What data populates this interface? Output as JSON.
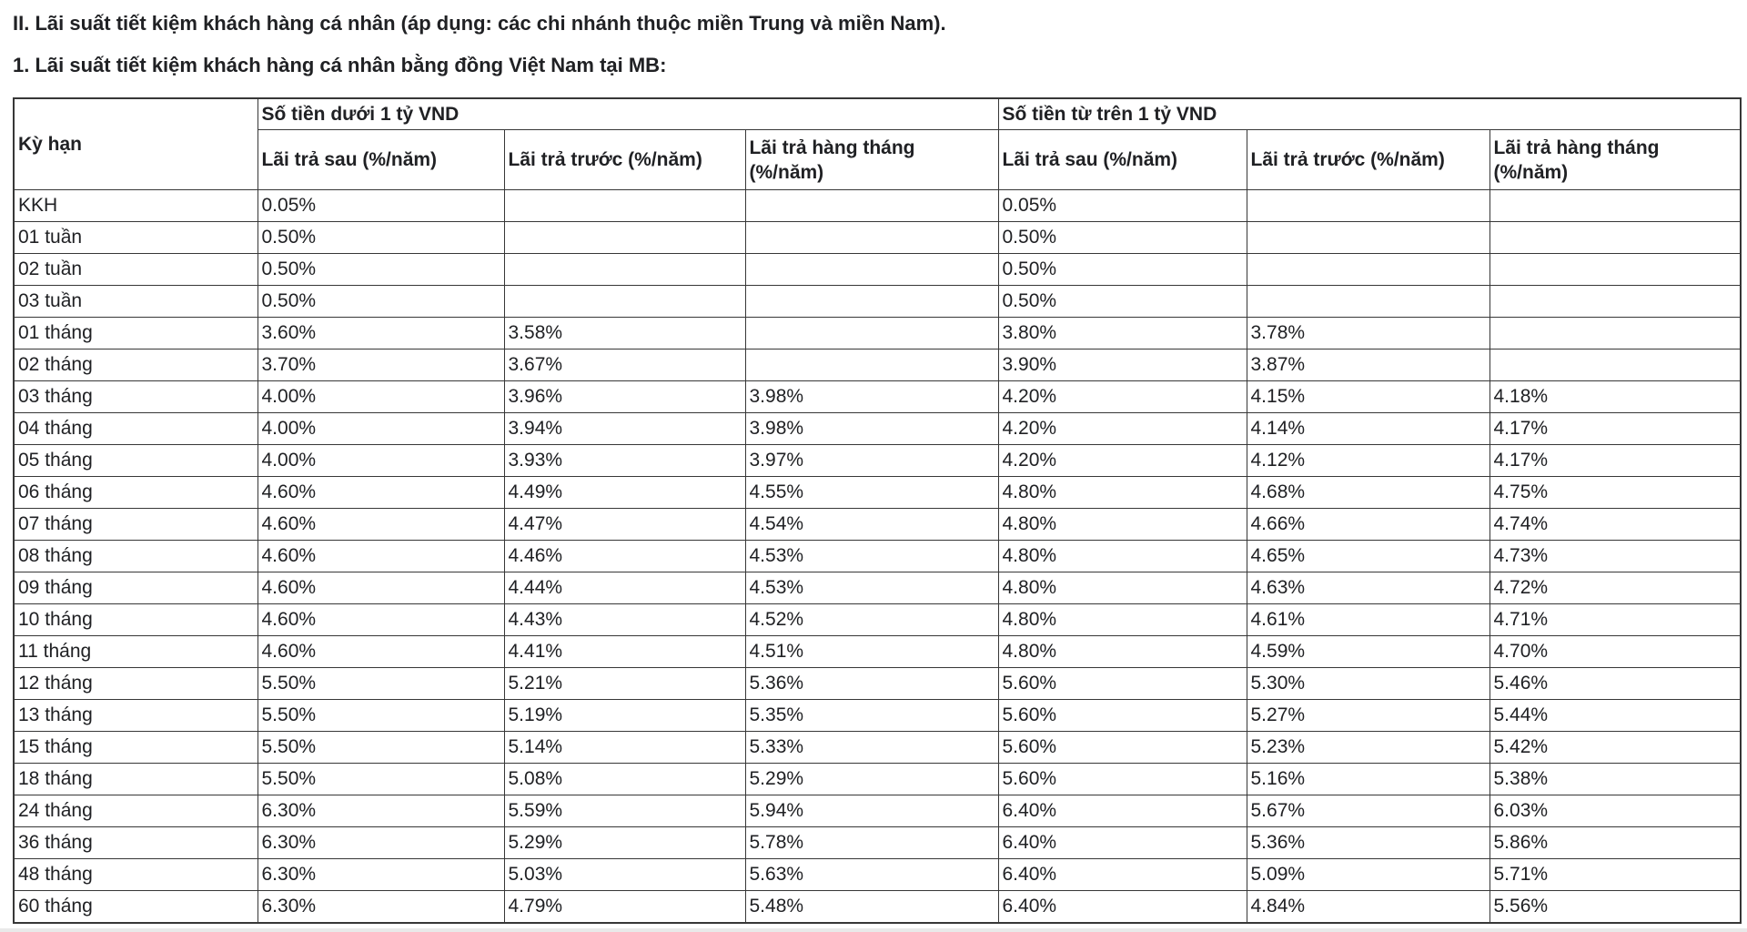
{
  "page": {
    "section_title": "II. Lãi suất tiết kiệm khách hàng cá nhân (áp dụng: các chi nhánh thuộc miền Trung và miền Nam).",
    "table_title": "1. Lãi suất tiết kiệm khách hàng cá nhân bằng đồng Việt Nam tại MB:"
  },
  "table": {
    "term_header": "Kỳ hạn",
    "group_headers": [
      "Số tiền dưới 1 tỷ VND",
      "Số tiền từ trên 1 tỷ VND"
    ],
    "sub_headers": [
      "Lãi trả sau (%/năm)",
      "Lãi trả trước (%/năm)",
      "Lãi trả hàng tháng (%/năm)"
    ],
    "rows": [
      {
        "term": "KKH",
        "values": [
          "0.05%",
          "",
          "",
          "0.05%",
          "",
          ""
        ]
      },
      {
        "term": "01 tuần",
        "values": [
          "0.50%",
          "",
          "",
          "0.50%",
          "",
          ""
        ]
      },
      {
        "term": "02 tuần",
        "values": [
          "0.50%",
          "",
          "",
          "0.50%",
          "",
          ""
        ]
      },
      {
        "term": "03 tuần",
        "values": [
          "0.50%",
          "",
          "",
          "0.50%",
          "",
          ""
        ]
      },
      {
        "term": "01 tháng",
        "values": [
          "3.60%",
          "3.58%",
          "",
          "3.80%",
          "3.78%",
          ""
        ]
      },
      {
        "term": "02 tháng",
        "values": [
          "3.70%",
          "3.67%",
          "",
          "3.90%",
          "3.87%",
          ""
        ]
      },
      {
        "term": "03 tháng",
        "values": [
          "4.00%",
          "3.96%",
          "3.98%",
          "4.20%",
          "4.15%",
          "4.18%"
        ]
      },
      {
        "term": "04 tháng",
        "values": [
          "4.00%",
          "3.94%",
          "3.98%",
          "4.20%",
          "4.14%",
          "4.17%"
        ]
      },
      {
        "term": "05 tháng",
        "values": [
          "4.00%",
          "3.93%",
          "3.97%",
          "4.20%",
          "4.12%",
          "4.17%"
        ]
      },
      {
        "term": "06 tháng",
        "values": [
          "4.60%",
          "4.49%",
          "4.55%",
          "4.80%",
          "4.68%",
          "4.75%"
        ]
      },
      {
        "term": "07 tháng",
        "values": [
          "4.60%",
          "4.47%",
          "4.54%",
          "4.80%",
          "4.66%",
          "4.74%"
        ]
      },
      {
        "term": "08 tháng",
        "values": [
          "4.60%",
          "4.46%",
          "4.53%",
          "4.80%",
          "4.65%",
          "4.73%"
        ]
      },
      {
        "term": "09 tháng",
        "values": [
          "4.60%",
          "4.44%",
          "4.53%",
          "4.80%",
          "4.63%",
          "4.72%"
        ]
      },
      {
        "term": "10 tháng",
        "values": [
          "4.60%",
          "4.43%",
          "4.52%",
          "4.80%",
          "4.61%",
          "4.71%"
        ]
      },
      {
        "term": "11 tháng",
        "values": [
          "4.60%",
          "4.41%",
          "4.51%",
          "4.80%",
          "4.59%",
          "4.70%"
        ]
      },
      {
        "term": "12 tháng",
        "values": [
          "5.50%",
          "5.21%",
          "5.36%",
          "5.60%",
          "5.30%",
          "5.46%"
        ]
      },
      {
        "term": "13 tháng",
        "values": [
          "5.50%",
          "5.19%",
          "5.35%",
          "5.60%",
          "5.27%",
          "5.44%"
        ]
      },
      {
        "term": "15 tháng",
        "values": [
          "5.50%",
          "5.14%",
          "5.33%",
          "5.60%",
          "5.23%",
          "5.42%"
        ]
      },
      {
        "term": "18 tháng",
        "values": [
          "5.50%",
          "5.08%",
          "5.29%",
          "5.60%",
          "5.16%",
          "5.38%"
        ]
      },
      {
        "term": "24 tháng",
        "values": [
          "6.30%",
          "5.59%",
          "5.94%",
          "6.40%",
          "5.67%",
          "6.03%"
        ]
      },
      {
        "term": "36 tháng",
        "values": [
          "6.30%",
          "5.29%",
          "5.78%",
          "6.40%",
          "5.36%",
          "5.86%"
        ]
      },
      {
        "term": "48 tháng",
        "values": [
          "6.30%",
          "5.03%",
          "5.63%",
          "6.40%",
          "5.09%",
          "5.71%"
        ]
      },
      {
        "term": "60 tháng",
        "values": [
          "6.30%",
          "4.79%",
          "5.48%",
          "6.40%",
          "4.84%",
          "5.56%"
        ]
      }
    ]
  },
  "colors": {
    "text": "#202124",
    "border": "#373737",
    "background": "#ffffff"
  }
}
